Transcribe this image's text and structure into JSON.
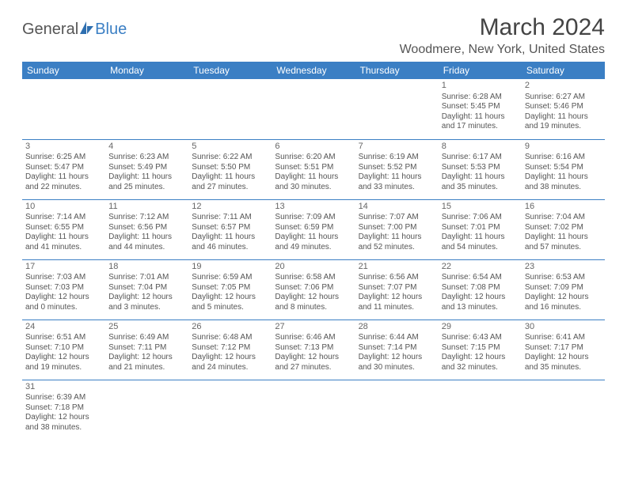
{
  "logo": {
    "text_genera": "Genera",
    "text_l": "l",
    "text_blue": "Blue"
  },
  "title": "March 2024",
  "location": "Woodmere, New York, United States",
  "colors": {
    "header_bg": "#3b7fc4",
    "header_fg": "#ffffff",
    "page_bg": "#ffffff",
    "text": "#555555",
    "rule": "#3b7fc4"
  },
  "typography": {
    "title_fontsize_pt": 22,
    "location_fontsize_pt": 12,
    "dayheader_fontsize_pt": 9,
    "cell_fontsize_pt": 7.5,
    "font_family": "Arial"
  },
  "day_headers": [
    "Sunday",
    "Monday",
    "Tuesday",
    "Wednesday",
    "Thursday",
    "Friday",
    "Saturday"
  ],
  "weeks": [
    [
      null,
      null,
      null,
      null,
      null,
      {
        "n": "1",
        "sunrise": "6:28 AM",
        "sunset": "5:45 PM",
        "daylight": "11 hours and 17 minutes."
      },
      {
        "n": "2",
        "sunrise": "6:27 AM",
        "sunset": "5:46 PM",
        "daylight": "11 hours and 19 minutes."
      }
    ],
    [
      {
        "n": "3",
        "sunrise": "6:25 AM",
        "sunset": "5:47 PM",
        "daylight": "11 hours and 22 minutes."
      },
      {
        "n": "4",
        "sunrise": "6:23 AM",
        "sunset": "5:49 PM",
        "daylight": "11 hours and 25 minutes."
      },
      {
        "n": "5",
        "sunrise": "6:22 AM",
        "sunset": "5:50 PM",
        "daylight": "11 hours and 27 minutes."
      },
      {
        "n": "6",
        "sunrise": "6:20 AM",
        "sunset": "5:51 PM",
        "daylight": "11 hours and 30 minutes."
      },
      {
        "n": "7",
        "sunrise": "6:19 AM",
        "sunset": "5:52 PM",
        "daylight": "11 hours and 33 minutes."
      },
      {
        "n": "8",
        "sunrise": "6:17 AM",
        "sunset": "5:53 PM",
        "daylight": "11 hours and 35 minutes."
      },
      {
        "n": "9",
        "sunrise": "6:16 AM",
        "sunset": "5:54 PM",
        "daylight": "11 hours and 38 minutes."
      }
    ],
    [
      {
        "n": "10",
        "sunrise": "7:14 AM",
        "sunset": "6:55 PM",
        "daylight": "11 hours and 41 minutes."
      },
      {
        "n": "11",
        "sunrise": "7:12 AM",
        "sunset": "6:56 PM",
        "daylight": "11 hours and 44 minutes."
      },
      {
        "n": "12",
        "sunrise": "7:11 AM",
        "sunset": "6:57 PM",
        "daylight": "11 hours and 46 minutes."
      },
      {
        "n": "13",
        "sunrise": "7:09 AM",
        "sunset": "6:59 PM",
        "daylight": "11 hours and 49 minutes."
      },
      {
        "n": "14",
        "sunrise": "7:07 AM",
        "sunset": "7:00 PM",
        "daylight": "11 hours and 52 minutes."
      },
      {
        "n": "15",
        "sunrise": "7:06 AM",
        "sunset": "7:01 PM",
        "daylight": "11 hours and 54 minutes."
      },
      {
        "n": "16",
        "sunrise": "7:04 AM",
        "sunset": "7:02 PM",
        "daylight": "11 hours and 57 minutes."
      }
    ],
    [
      {
        "n": "17",
        "sunrise": "7:03 AM",
        "sunset": "7:03 PM",
        "daylight": "12 hours and 0 minutes."
      },
      {
        "n": "18",
        "sunrise": "7:01 AM",
        "sunset": "7:04 PM",
        "daylight": "12 hours and 3 minutes."
      },
      {
        "n": "19",
        "sunrise": "6:59 AM",
        "sunset": "7:05 PM",
        "daylight": "12 hours and 5 minutes."
      },
      {
        "n": "20",
        "sunrise": "6:58 AM",
        "sunset": "7:06 PM",
        "daylight": "12 hours and 8 minutes."
      },
      {
        "n": "21",
        "sunrise": "6:56 AM",
        "sunset": "7:07 PM",
        "daylight": "12 hours and 11 minutes."
      },
      {
        "n": "22",
        "sunrise": "6:54 AM",
        "sunset": "7:08 PM",
        "daylight": "12 hours and 13 minutes."
      },
      {
        "n": "23",
        "sunrise": "6:53 AM",
        "sunset": "7:09 PM",
        "daylight": "12 hours and 16 minutes."
      }
    ],
    [
      {
        "n": "24",
        "sunrise": "6:51 AM",
        "sunset": "7:10 PM",
        "daylight": "12 hours and 19 minutes."
      },
      {
        "n": "25",
        "sunrise": "6:49 AM",
        "sunset": "7:11 PM",
        "daylight": "12 hours and 21 minutes."
      },
      {
        "n": "26",
        "sunrise": "6:48 AM",
        "sunset": "7:12 PM",
        "daylight": "12 hours and 24 minutes."
      },
      {
        "n": "27",
        "sunrise": "6:46 AM",
        "sunset": "7:13 PM",
        "daylight": "12 hours and 27 minutes."
      },
      {
        "n": "28",
        "sunrise": "6:44 AM",
        "sunset": "7:14 PM",
        "daylight": "12 hours and 30 minutes."
      },
      {
        "n": "29",
        "sunrise": "6:43 AM",
        "sunset": "7:15 PM",
        "daylight": "12 hours and 32 minutes."
      },
      {
        "n": "30",
        "sunrise": "6:41 AM",
        "sunset": "7:17 PM",
        "daylight": "12 hours and 35 minutes."
      }
    ],
    [
      {
        "n": "31",
        "sunrise": "6:39 AM",
        "sunset": "7:18 PM",
        "daylight": "12 hours and 38 minutes."
      },
      null,
      null,
      null,
      null,
      null,
      null
    ]
  ],
  "labels": {
    "sunrise": "Sunrise: ",
    "sunset": "Sunset: ",
    "daylight": "Daylight: "
  }
}
